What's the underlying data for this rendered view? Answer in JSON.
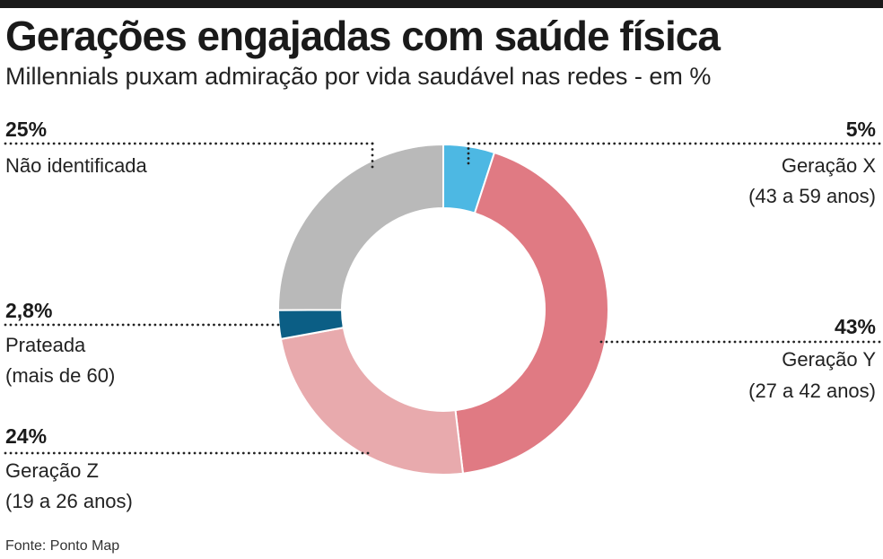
{
  "header": {
    "title": "Gerações engajadas com saúde física",
    "subtitle": "Millennials puxam admiração por vida saudável nas redes - em %"
  },
  "chart_data": {
    "type": "pie",
    "title": "Gerações engajadas com saúde física",
    "subtitle": "Millennials puxam admiração por vida saudável nas redes - em %",
    "slices": [
      {
        "name": "Geração X",
        "detail": "(43 a 59 anos)",
        "value": 5,
        "label": "5%",
        "color": "#4db8e3"
      },
      {
        "name": "Geração Y",
        "detail": "(27 a 42 anos)",
        "value": 43,
        "label": "43%",
        "color": "#e07a83"
      },
      {
        "name": "Geração Z",
        "detail": "(19 a 26 anos)",
        "value": 24,
        "label": "24%",
        "color": "#e8aaad"
      },
      {
        "name": "Prateada",
        "detail": "(mais de 60)",
        "value": 2.8,
        "label": "2,8%",
        "color": "#0b5e85"
      },
      {
        "name": "Não identificada",
        "detail": "",
        "value": 25,
        "label": "25%",
        "color": "#b9b9b9"
      }
    ]
  },
  "footer": {
    "source": "Fonte: Ponto Map"
  }
}
